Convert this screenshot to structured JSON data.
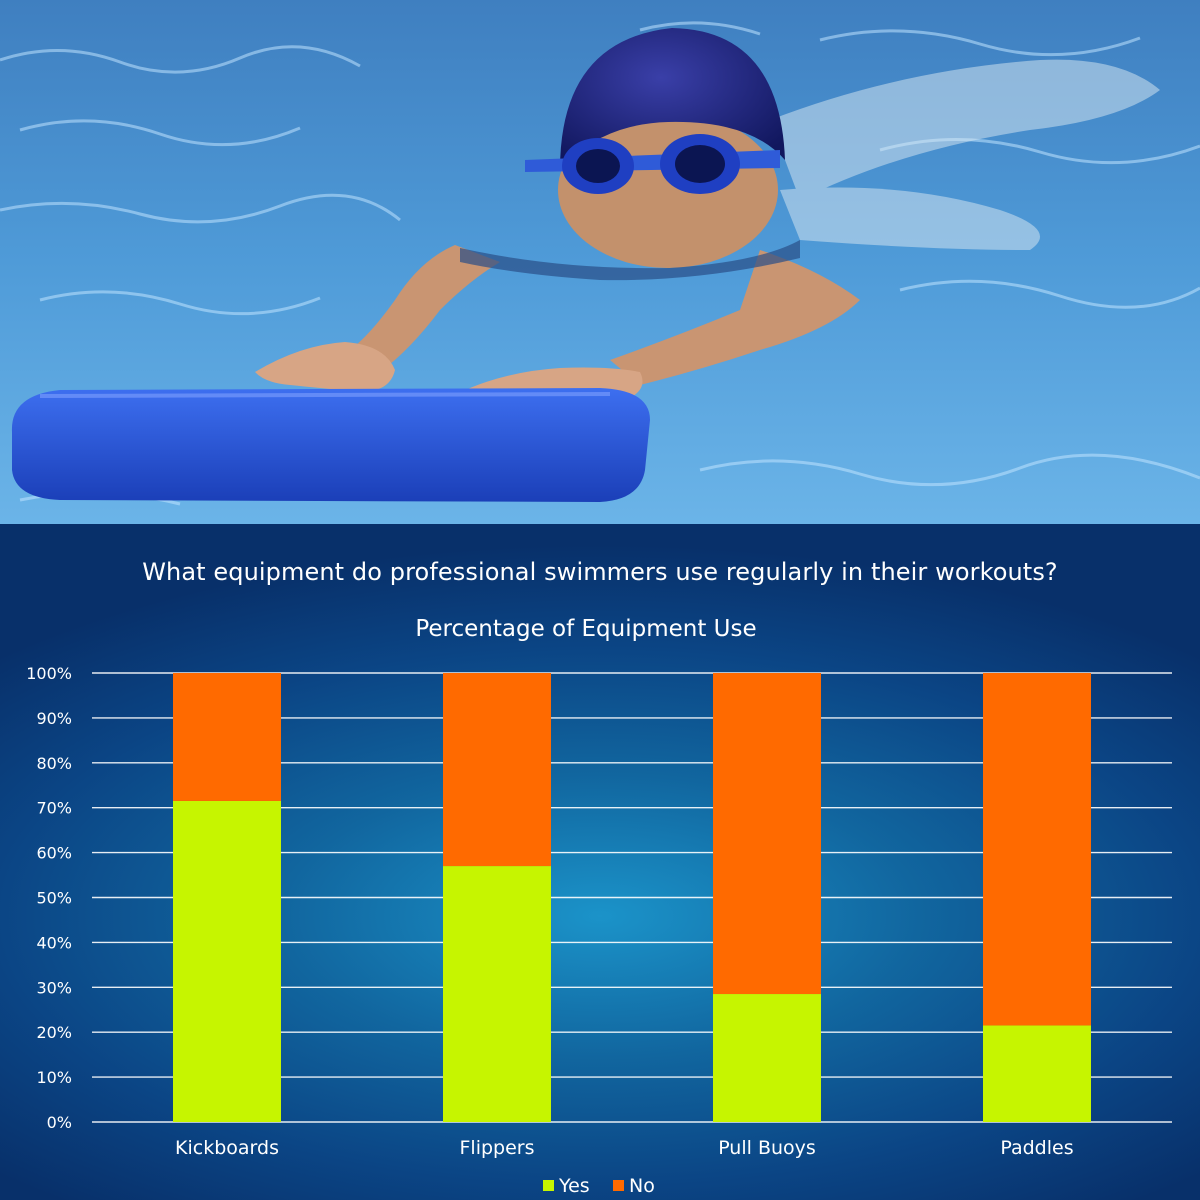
{
  "question": "What equipment do professional swimmers use regularly in their workouts?",
  "chart_data": {
    "type": "bar",
    "stacked": true,
    "title": "Percentage of Equipment Use",
    "categories": [
      "Kickboards",
      "Flippers",
      "Pull Buoys",
      "Paddles"
    ],
    "series": [
      {
        "name": "Yes",
        "values": [
          71.5,
          57,
          28.5,
          21.5
        ],
        "color": "#c6f500"
      },
      {
        "name": "No",
        "values": [
          28.5,
          43,
          71.5,
          78.5
        ],
        "color": "#ff6a00"
      }
    ],
    "ylim": [
      0,
      100
    ],
    "yticks": [
      "0%",
      "10%",
      "20%",
      "30%",
      "40%",
      "50%",
      "60%",
      "70%",
      "80%",
      "90%",
      "100%"
    ],
    "grid": true,
    "legend_position": "bottom"
  }
}
